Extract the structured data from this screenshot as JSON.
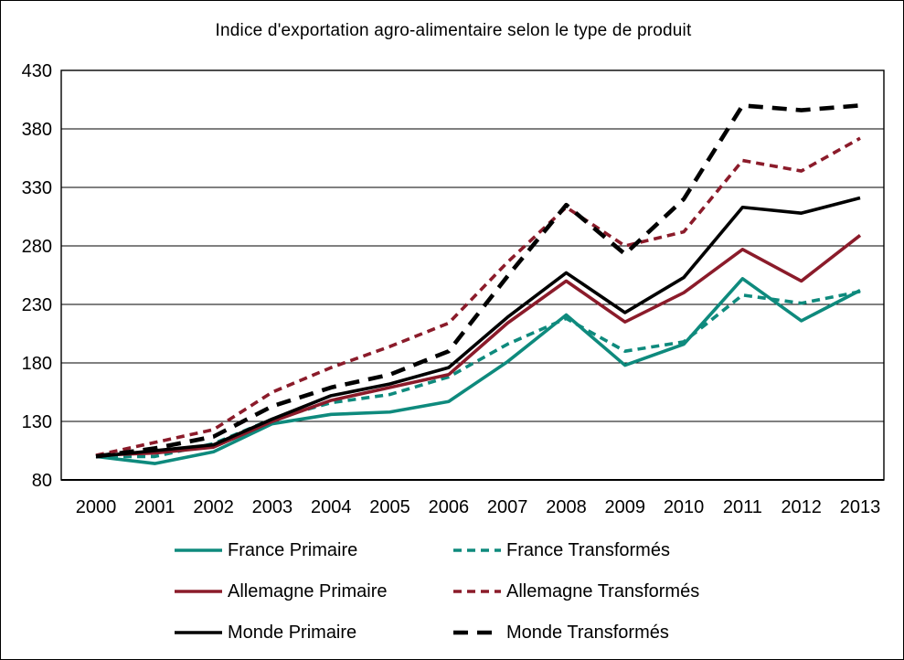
{
  "title": "Indice d'exportation agro-alimentaire selon le type de produit",
  "chart_data": {
    "type": "line",
    "x": [
      2000,
      2001,
      2002,
      2003,
      2004,
      2005,
      2006,
      2007,
      2008,
      2009,
      2010,
      2011,
      2012,
      2013
    ],
    "ylim": [
      80,
      430
    ],
    "yticks": [
      80,
      130,
      180,
      230,
      280,
      330,
      380,
      430
    ],
    "grid": true,
    "legend_position": "bottom",
    "title": "Indice d'exportation agro-alimentaire selon le type de produit",
    "xlabel": "",
    "ylabel": "",
    "series": [
      {
        "name": "France Primaire",
        "color": "#0E8A7D",
        "dash": "solid",
        "values": [
          100,
          94,
          104,
          128,
          136,
          138,
          147,
          181,
          221,
          178,
          196,
          252,
          216,
          242
        ]
      },
      {
        "name": "France Transformés",
        "color": "#0E8A7D",
        "dash": "short-dash",
        "values": [
          100,
          100,
          111,
          132,
          146,
          153,
          168,
          196,
          218,
          190,
          198,
          238,
          231,
          241
        ]
      },
      {
        "name": "Allemagne Primaire",
        "color": "#8B1B2A",
        "dash": "solid",
        "values": [
          101,
          103,
          108,
          130,
          148,
          159,
          170,
          214,
          250,
          215,
          240,
          277,
          250,
          289
        ]
      },
      {
        "name": "Allemagne Transformés",
        "color": "#8B1B2A",
        "dash": "short-dash",
        "values": [
          101,
          112,
          123,
          155,
          176,
          194,
          214,
          266,
          313,
          280,
          292,
          353,
          344,
          372
        ]
      },
      {
        "name": "Monde Primaire",
        "color": "#000000",
        "dash": "solid",
        "values": [
          100,
          105,
          110,
          132,
          152,
          162,
          176,
          219,
          257,
          223,
          253,
          313,
          308,
          321
        ]
      },
      {
        "name": "Monde Transformés",
        "color": "#000000",
        "dash": "long-dash",
        "values": [
          100,
          107,
          117,
          143,
          159,
          170,
          190,
          254,
          315,
          273,
          320,
          400,
          396,
          400
        ]
      }
    ]
  }
}
